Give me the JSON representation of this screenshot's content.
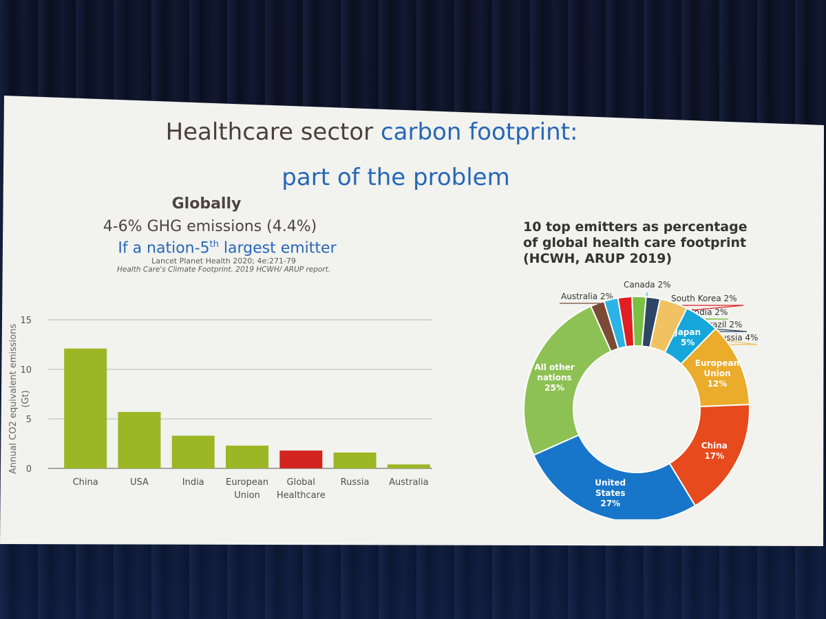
{
  "slide": {
    "title_part1": "Healthcare sector ",
    "title_part1_highlight": "carbon footprint:",
    "title_line2": "part of the problem",
    "globally_heading": "Globally",
    "emissions_range": "4-6% GHG emissions (4.4%)",
    "nation_prefix": "If a nation-5",
    "nation_sup": "th",
    "nation_suffix": " largest emitter",
    "reference_1": "Lancet Planet Health 2020; 4e:271-79",
    "reference_2": "Health Care's Climate Footprint. 2019 HCWH/ ARUP report.",
    "donut_title": "10 top emitters as percentage of global health care footprint (HCWH, ARUP 2019)"
  },
  "colors": {
    "bar_green": "#9bb726",
    "bar_red": "#d3251f",
    "title_blue": "#2667b8",
    "slide_bg": "#f2f2ee"
  },
  "chart_data": [
    {
      "type": "bar",
      "categories": [
        "China",
        "USA",
        "India",
        "European Union",
        "Global Healthcare",
        "Russia",
        "Australia"
      ],
      "category_lines": [
        [
          "China"
        ],
        [
          "USA"
        ],
        [
          "India"
        ],
        [
          "European",
          "Union"
        ],
        [
          "Global",
          "Healthcare"
        ],
        [
          "Russia"
        ],
        [
          "Australia"
        ]
      ],
      "values": [
        12.1,
        5.7,
        3.3,
        2.3,
        1.8,
        1.6,
        0.4
      ],
      "colors": [
        "#9bb726",
        "#9bb726",
        "#9bb726",
        "#9bb726",
        "#d3251f",
        "#9bb726",
        "#9bb726"
      ],
      "ylabel_lines": [
        "Annual CO2 equivalent emissions",
        "(Gt)"
      ],
      "ylim": [
        0,
        15
      ],
      "yticks": [
        0,
        5,
        10,
        15
      ],
      "grid": true
    },
    {
      "type": "pie",
      "donut": true,
      "title": "10 top emitters as percentage of global health care footprint (HCWH, ARUP 2019)",
      "slices": [
        {
          "label": "Australia",
          "value": 2,
          "pct": "2%",
          "color": "#7a4a35",
          "inside": false
        },
        {
          "label": "Canada",
          "value": 2,
          "pct": "2%",
          "color": "#29b3e6",
          "inside": false
        },
        {
          "label": "South Korea",
          "value": 2,
          "pct": "2%",
          "color": "#e01e24",
          "inside": false
        },
        {
          "label": "India",
          "value": 2,
          "pct": "2%",
          "color": "#79c043",
          "inside": false
        },
        {
          "label": "Brazil",
          "value": 2,
          "pct": "2%",
          "color": "#2e4566",
          "inside": false
        },
        {
          "label": "Russia",
          "value": 4,
          "pct": "4%",
          "color": "#f0c261",
          "inside": false
        },
        {
          "label": "Japan",
          "value": 5,
          "pct": "5%",
          "color": "#16a6da",
          "inside": true,
          "lines": [
            "Japan",
            "5%"
          ]
        },
        {
          "label": "European Union",
          "value": 12,
          "pct": "12%",
          "color": "#ebab2b",
          "inside": true,
          "lines": [
            "European",
            "Union",
            "12%"
          ]
        },
        {
          "label": "China",
          "value": 17,
          "pct": "17%",
          "color": "#e64a1d",
          "inside": true,
          "lines": [
            "China",
            "17%"
          ]
        },
        {
          "label": "United States",
          "value": 27,
          "pct": "27%",
          "color": "#1776c9",
          "inside": true,
          "lines": [
            "United",
            "States",
            "27%"
          ]
        },
        {
          "label": "All other nations",
          "value": 25,
          "pct": "25%",
          "color": "#8dc153",
          "inside": true,
          "lines": [
            "All other",
            "nations",
            "25%"
          ]
        }
      ]
    }
  ]
}
